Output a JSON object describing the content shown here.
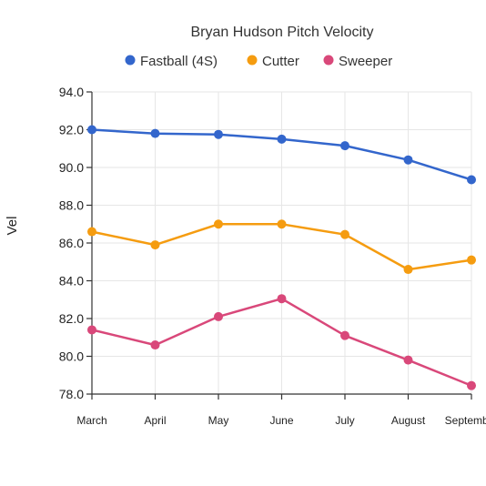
{
  "chart_data": {
    "type": "line",
    "title": "Bryan Hudson Pitch Velocity",
    "xlabel": "",
    "ylabel": "Vel",
    "categories": [
      "March",
      "April",
      "May",
      "June",
      "July",
      "August",
      "September"
    ],
    "ylim": [
      78,
      94
    ],
    "yticks": [
      "78.0",
      "80.0",
      "82.0",
      "84.0",
      "86.0",
      "88.0",
      "90.0",
      "92.0",
      "94.0"
    ],
    "grid": true,
    "legend_position": "top",
    "series": [
      {
        "name": "Fastball (4S)",
        "color": "#3366cc",
        "values": [
          92.0,
          91.8,
          91.75,
          91.5,
          91.15,
          90.4,
          89.35
        ]
      },
      {
        "name": "Cutter",
        "color": "#f59c10",
        "values": [
          86.6,
          85.9,
          87.0,
          87.0,
          86.45,
          84.6,
          85.1
        ]
      },
      {
        "name": "Sweeper",
        "color": "#d9487a",
        "values": [
          81.4,
          80.6,
          82.1,
          83.05,
          81.1,
          79.8,
          78.45
        ]
      }
    ]
  }
}
